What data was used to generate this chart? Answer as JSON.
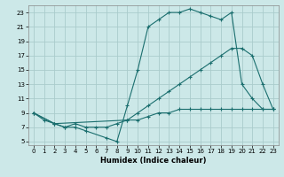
{
  "xlabel": "Humidex (Indice chaleur)",
  "bg_color": "#cce8e8",
  "grid_color": "#aacccc",
  "line_color": "#1a6e6e",
  "xlim": [
    -0.5,
    23.5
  ],
  "ylim": [
    4.5,
    24.0
  ],
  "xticks": [
    0,
    1,
    2,
    3,
    4,
    5,
    6,
    7,
    8,
    9,
    10,
    11,
    12,
    13,
    14,
    15,
    16,
    17,
    18,
    19,
    20,
    21,
    22,
    23
  ],
  "yticks": [
    5,
    7,
    9,
    11,
    13,
    15,
    17,
    19,
    21,
    23
  ],
  "line1_x": [
    0,
    1,
    2,
    3,
    4,
    5,
    7,
    8,
    9,
    10,
    11,
    12,
    13,
    14,
    15,
    16,
    17,
    18,
    19,
    20,
    21,
    22,
    23
  ],
  "line1_y": [
    9,
    8,
    7.5,
    7,
    7,
    6.5,
    5.5,
    5,
    10,
    15,
    21,
    22,
    23,
    23,
    23.5,
    23,
    22.5,
    22,
    23,
    13,
    11,
    9.5,
    9.5
  ],
  "line2_x": [
    0,
    2,
    3,
    4,
    5,
    6,
    7,
    8,
    9,
    10,
    11,
    12,
    13,
    14,
    15,
    16,
    17,
    18,
    19,
    20,
    21,
    22,
    23
  ],
  "line2_y": [
    9,
    7.5,
    7,
    7.5,
    7,
    7,
    7,
    7.5,
    8,
    8,
    8.5,
    9,
    9,
    9.5,
    9.5,
    9.5,
    9.5,
    9.5,
    9.5,
    9.5,
    9.5,
    9.5,
    9.5
  ],
  "line3_x": [
    0,
    2,
    9,
    10,
    11,
    12,
    13,
    14,
    15,
    16,
    17,
    18,
    19,
    20,
    21,
    22,
    23
  ],
  "line3_y": [
    9,
    7.5,
    8,
    9,
    10,
    11,
    12,
    13,
    14,
    15,
    16,
    17,
    18,
    18,
    17,
    13,
    9.5
  ]
}
